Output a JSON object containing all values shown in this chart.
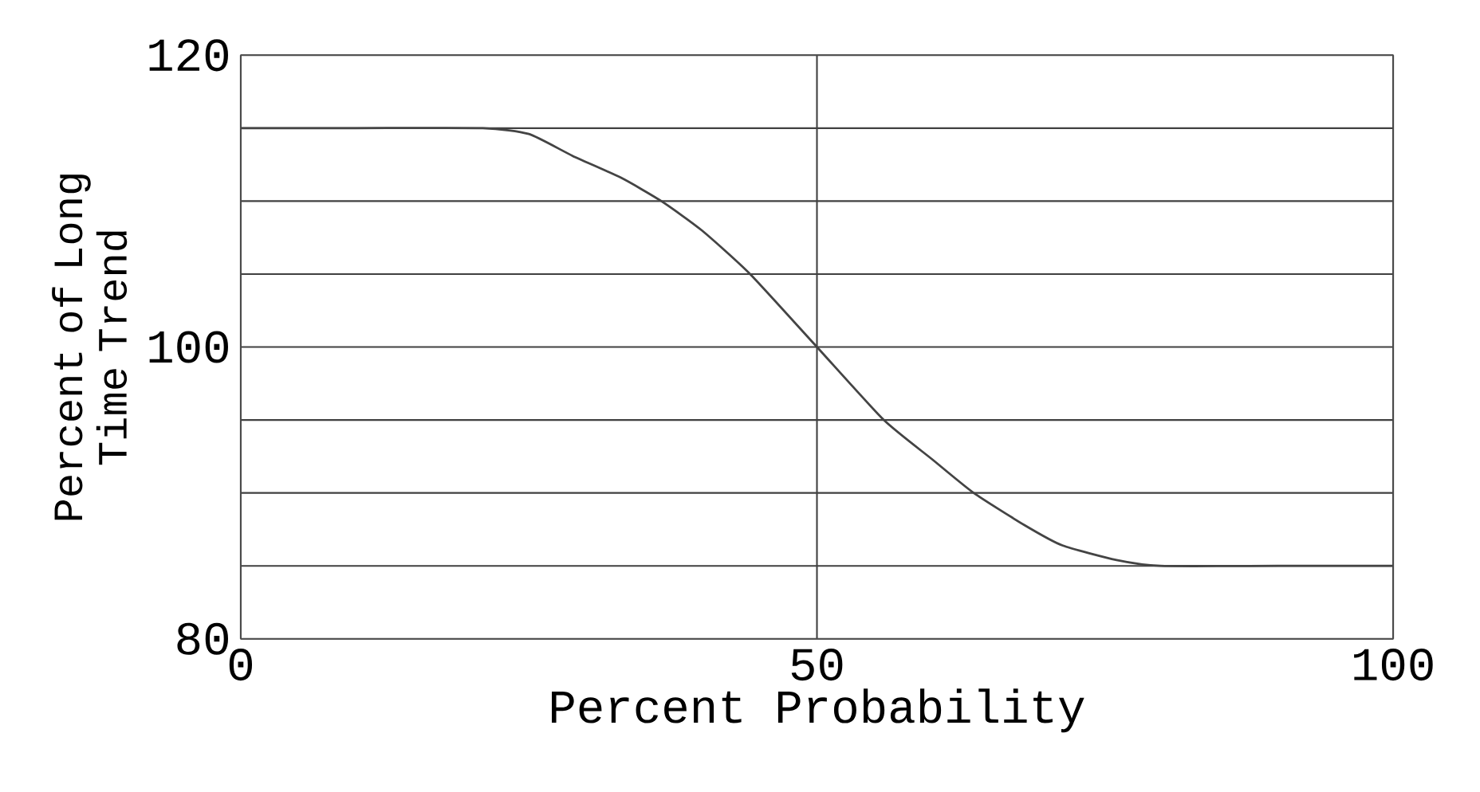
{
  "chart_data": {
    "type": "line",
    "xlabel": "Percent Probability",
    "ylabel": "Percent of Long Time Trend",
    "x": [
      0,
      10,
      21,
      25,
      28.8,
      33,
      36.5,
      40,
      44.2,
      50,
      55.8,
      60,
      63.6,
      68,
      71.3,
      76,
      79.8,
      90,
      100
    ],
    "series": [
      {
        "color": "#444444",
        "values": [
          115,
          115,
          115,
          114.6,
          113.1,
          111.6,
          110,
          108,
          105,
          100,
          95,
          92.3,
          90,
          87.8,
          86.4,
          85.4,
          85,
          85,
          85
        ]
      }
    ],
    "xlim": [
      0,
      100
    ],
    "ylim": [
      80,
      120
    ],
    "xticks": [
      0,
      50,
      100
    ],
    "yticks": [
      80,
      {
        "value": 85,
        "label": null
      },
      {
        "value": 90,
        "label": null
      },
      {
        "value": 95,
        "label": null
      },
      100,
      {
        "value": 105,
        "label": null
      },
      {
        "value": 110,
        "label": null
      },
      {
        "value": 115,
        "label": null
      },
      120
    ],
    "grid": true,
    "marker": "none",
    "line_style": "solid"
  }
}
